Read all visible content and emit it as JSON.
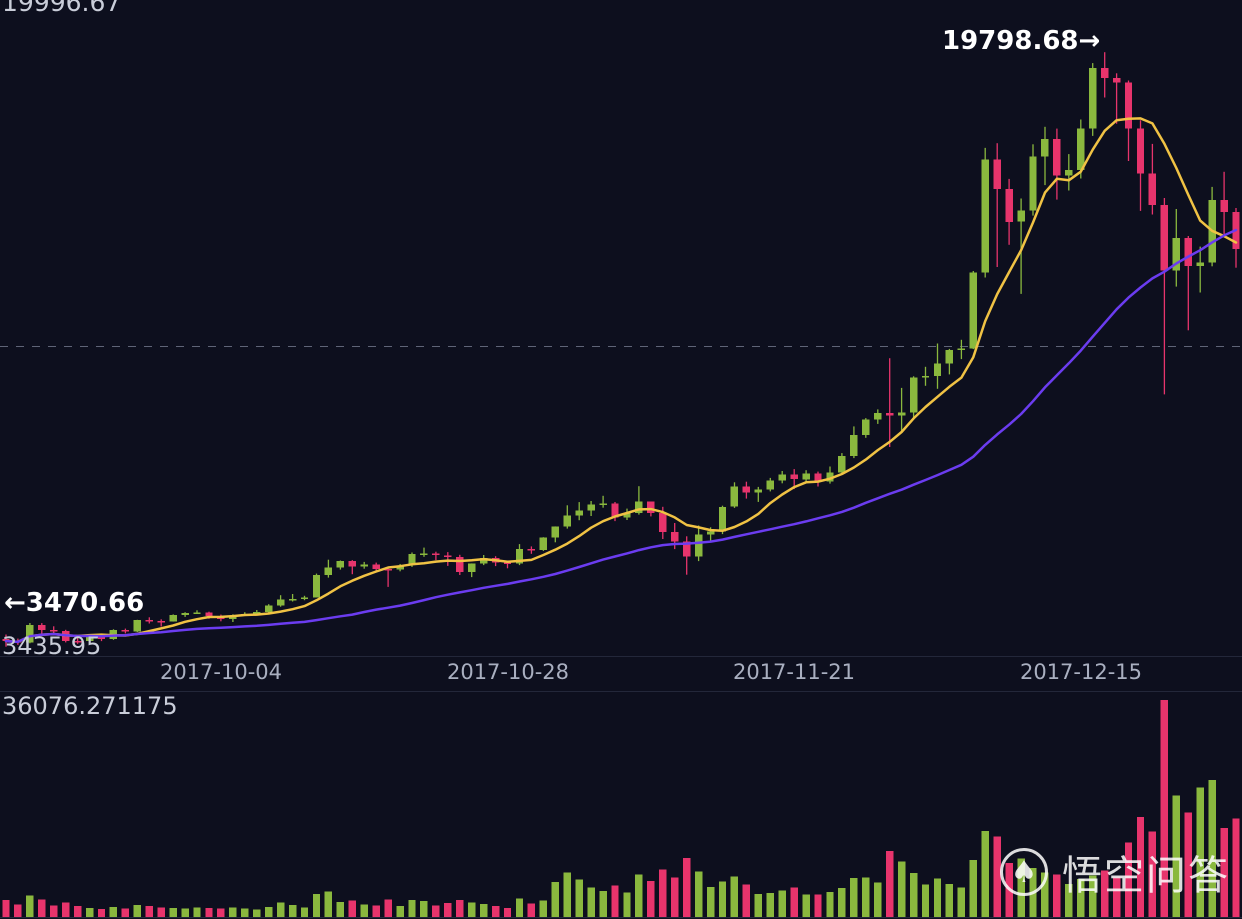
{
  "watermark": {
    "text": "悟空问答"
  },
  "annotations": {
    "axis_max": "19996.67",
    "axis_min": "3435.95",
    "volume_max_label": "36076.271175",
    "high_label": "19798.68",
    "high_arrow": "→",
    "low_arrow": "←",
    "low_label": "3470.66"
  },
  "colors": {
    "background": "#0d0f1e",
    "up": "#8ab83e",
    "down": "#e7346c",
    "ma_fast": "#f0c244",
    "ma_slow": "#6b3cf0",
    "grid_dash": "#5f6477",
    "separator": "#23273a",
    "axis_text": "#c9cdd9",
    "date_text": "#a9afc0",
    "annotation_text": "#ffffff"
  },
  "chart_data": {
    "type": "candlestick",
    "title": "",
    "xlabel": "",
    "ylabel": "",
    "grid": "single dashed horizontal midline",
    "legend_position": "none",
    "x_ticks": [
      "2017-10-04",
      "2017-10-28",
      "2017-11-21",
      "2017-12-15"
    ],
    "price_axis": {
      "min": 3435.95,
      "max": 19996.67
    },
    "volume_axis": {
      "min": 0,
      "max": 36076.271175
    },
    "marked_high": 19798.68,
    "marked_low": 3470.66,
    "overlays": [
      {
        "name": "MA7",
        "window": 7,
        "color": "#f0c244"
      },
      {
        "name": "MA30",
        "window": 30,
        "color": "#6b3cf0"
      }
    ],
    "candles_columns": [
      "date",
      "open",
      "high",
      "low",
      "close",
      "volume"
    ],
    "candles": [
      [
        "2017-09-16",
        3680,
        3808,
        3470.66,
        3625,
        2800
      ],
      [
        "2017-09-17",
        3625,
        3693,
        3520,
        3582,
        2100
      ],
      [
        "2017-09-18",
        3582,
        4123,
        3565,
        4065,
        3600
      ],
      [
        "2017-09-19",
        4065,
        4119,
        3820,
        3924,
        2900
      ],
      [
        "2017-09-20",
        3924,
        4031,
        3850,
        3905,
        1900
      ],
      [
        "2017-09-21",
        3905,
        3937,
        3590,
        3631,
        2400
      ],
      [
        "2017-09-22",
        3631,
        3755,
        3550,
        3630,
        1800
      ],
      [
        "2017-09-23",
        3630,
        3815,
        3594,
        3792,
        1500
      ],
      [
        "2017-09-24",
        3792,
        3795,
        3626,
        3682,
        1300
      ],
      [
        "2017-09-25",
        3682,
        3950,
        3661,
        3926,
        1700
      ],
      [
        "2017-09-26",
        3926,
        3970,
        3838,
        3892,
        1400
      ],
      [
        "2017-09-27",
        3892,
        4210,
        3874,
        4200,
        2000
      ],
      [
        "2017-09-28",
        4200,
        4279,
        4110,
        4174,
        1800
      ],
      [
        "2017-09-29",
        4174,
        4225,
        4026,
        4163,
        1600
      ],
      [
        "2017-09-30",
        4163,
        4360,
        4160,
        4338,
        1500
      ],
      [
        "2017-10-01",
        4338,
        4419,
        4290,
        4403,
        1400
      ],
      [
        "2017-10-02",
        4403,
        4470,
        4377,
        4409,
        1600
      ],
      [
        "2017-10-03",
        4409,
        4432,
        4239,
        4317,
        1500
      ],
      [
        "2017-10-04",
        4317,
        4352,
        4168,
        4229,
        1450
      ],
      [
        "2017-10-05",
        4229,
        4362,
        4151,
        4328,
        1550
      ],
      [
        "2017-10-06",
        4328,
        4418,
        4318,
        4370,
        1380
      ],
      [
        "2017-10-07",
        4370,
        4480,
        4340,
        4426,
        1250
      ],
      [
        "2017-10-08",
        4426,
        4640,
        4410,
        4610,
        1650
      ],
      [
        "2017-10-09",
        4610,
        4885,
        4570,
        4772,
        2400
      ],
      [
        "2017-10-10",
        4772,
        4920,
        4712,
        4781,
        2000
      ],
      [
        "2017-10-11",
        4781,
        4870,
        4750,
        4826,
        1550
      ],
      [
        "2017-10-12",
        4826,
        5480,
        4822,
        5446,
        3800
      ],
      [
        "2017-10-13",
        5446,
        5860,
        5370,
        5647,
        4200
      ],
      [
        "2017-10-14",
        5647,
        5838,
        5590,
        5831,
        2500
      ],
      [
        "2017-10-15",
        5831,
        5850,
        5463,
        5678,
        2750
      ],
      [
        "2017-10-16",
        5678,
        5800,
        5615,
        5725,
        2100
      ],
      [
        "2017-10-17",
        5725,
        5780,
        5510,
        5605,
        1900
      ],
      [
        "2017-10-18",
        5605,
        5623,
        5115,
        5590,
        2950
      ],
      [
        "2017-10-19",
        5590,
        5743,
        5543,
        5708,
        1850
      ],
      [
        "2017-10-20",
        5708,
        6060,
        5662,
        6011,
        2850
      ],
      [
        "2017-10-21",
        6011,
        6194,
        5940,
        6031,
        2650
      ],
      [
        "2017-10-22",
        6031,
        6080,
        5851,
        5983,
        1900
      ],
      [
        "2017-10-23",
        5983,
        6070,
        5690,
        5930,
        2300
      ],
      [
        "2017-10-24",
        5930,
        5995,
        5440,
        5526,
        2800
      ],
      [
        "2017-10-25",
        5526,
        5760,
        5382,
        5750,
        2400
      ],
      [
        "2017-10-26",
        5750,
        5990,
        5713,
        5904,
        2200
      ],
      [
        "2017-10-27",
        5904,
        5958,
        5686,
        5780,
        1800
      ],
      [
        "2017-10-28",
        5780,
        5830,
        5625,
        5755,
        1500
      ],
      [
        "2017-10-29",
        5755,
        6290,
        5712,
        6153,
        3100
      ],
      [
        "2017-10-30",
        6153,
        6225,
        6022,
        6130,
        2250
      ],
      [
        "2017-10-31",
        6130,
        6480,
        6103,
        6468,
        2750
      ],
      [
        "2017-11-01",
        6468,
        6775,
        6340,
        6767,
        5800
      ],
      [
        "2017-11-02",
        6767,
        7355,
        6715,
        7078,
        7400
      ],
      [
        "2017-11-03",
        7078,
        7444,
        6945,
        7207,
        6200
      ],
      [
        "2017-11-04",
        7207,
        7474,
        7060,
        7379,
        4900
      ],
      [
        "2017-11-05",
        7379,
        7617,
        7290,
        7407,
        4300
      ],
      [
        "2017-11-06",
        7407,
        7445,
        6920,
        7022,
        5200
      ],
      [
        "2017-11-07",
        7022,
        7265,
        6950,
        7144,
        4100
      ],
      [
        "2017-11-08",
        7144,
        7879,
        7100,
        7459,
        7100
      ],
      [
        "2017-11-09",
        7459,
        7460,
        7050,
        7143,
        6000
      ],
      [
        "2017-11-10",
        7143,
        7315,
        6430,
        6618,
        7900
      ],
      [
        "2017-11-11",
        6618,
        6870,
        6153,
        6357,
        6600
      ],
      [
        "2017-11-12",
        6357,
        6505,
        5450,
        5950,
        9800
      ],
      [
        "2017-11-13",
        5950,
        6800,
        5823,
        6559,
        7600
      ],
      [
        "2017-11-14",
        6559,
        6750,
        6333,
        6635,
        5000
      ],
      [
        "2017-11-15",
        6635,
        7345,
        6565,
        7315,
        5900
      ],
      [
        "2017-11-16",
        7315,
        7988,
        7285,
        7871,
        6700
      ],
      [
        "2017-11-17",
        7871,
        8004,
        7538,
        7708,
        5400
      ],
      [
        "2017-11-18",
        7708,
        7860,
        7448,
        7790,
        3800
      ],
      [
        "2017-11-19",
        7790,
        8107,
        7738,
        8036,
        4000
      ],
      [
        "2017-11-20",
        8036,
        8298,
        7960,
        8200,
        4400
      ],
      [
        "2017-11-21",
        8200,
        8348,
        7800,
        8071,
        4900
      ],
      [
        "2017-11-22",
        8071,
        8320,
        8010,
        8235,
        3700
      ],
      [
        "2017-11-23",
        8235,
        8280,
        7870,
        8010,
        3750
      ],
      [
        "2017-11-24",
        8010,
        8420,
        7950,
        8250,
        4150
      ],
      [
        "2017-11-25",
        8250,
        8790,
        8205,
        8707,
        4850
      ],
      [
        "2017-11-26",
        8707,
        9522,
        8650,
        9284,
        6500
      ],
      [
        "2017-11-27",
        9284,
        9750,
        9210,
        9718,
        6600
      ],
      [
        "2017-11-28",
        9718,
        9990,
        9590,
        9888,
        5750
      ],
      [
        "2017-11-29",
        9888,
        11395,
        8955,
        9824,
        11000
      ],
      [
        "2017-11-30",
        9824,
        10580,
        9380,
        9906,
        9200
      ],
      [
        "2017-12-01",
        9906,
        10898,
        9750,
        10859,
        7300
      ],
      [
        "2017-12-02",
        10859,
        11160,
        10638,
        10912,
        5400
      ],
      [
        "2017-12-03",
        10912,
        11800,
        10555,
        11246,
        6400
      ],
      [
        "2017-12-04",
        11246,
        11650,
        10950,
        11623,
        5500
      ],
      [
        "2017-12-05",
        11623,
        11900,
        11370,
        11667,
        4900
      ],
      [
        "2017-12-06",
        11667,
        13790,
        11645,
        13749,
        9500
      ],
      [
        "2017-12-07",
        13749,
        17170,
        13611,
        16850,
        14300
      ],
      [
        "2017-12-08",
        16850,
        17300,
        13900,
        16047,
        13400
      ],
      [
        "2017-12-09",
        16047,
        16320,
        14510,
        15142,
        9000
      ],
      [
        "2017-12-10",
        15142,
        15780,
        13160,
        15456,
        9750
      ],
      [
        "2017-12-11",
        15456,
        17270,
        15310,
        16936,
        8150
      ],
      [
        "2017-12-12",
        16936,
        17750,
        16150,
        17415,
        7400
      ],
      [
        "2017-12-13",
        17415,
        17700,
        15750,
        16408,
        7100
      ],
      [
        "2017-12-14",
        16408,
        17000,
        16000,
        16564,
        5500
      ],
      [
        "2017-12-15",
        16564,
        17950,
        16330,
        17706,
        6350
      ],
      [
        "2017-12-16",
        17706,
        19500,
        17500,
        19365,
        6900
      ],
      [
        "2017-12-17",
        19365,
        19798.68,
        18555,
        19086,
        7750
      ],
      [
        "2017-12-18",
        19086,
        19220,
        17835,
        18972,
        6600
      ],
      [
        "2017-12-19",
        18972,
        19022,
        16812,
        17700,
        12400
      ],
      [
        "2017-12-20",
        17700,
        17930,
        15440,
        16466,
        16600
      ],
      [
        "2017-12-21",
        16466,
        17281,
        15342,
        15600,
        14200
      ],
      [
        "2017-12-22",
        15600,
        15795,
        10400,
        13800,
        36076.271175
      ],
      [
        "2017-12-23",
        13800,
        15493,
        13361,
        14699,
        20200
      ],
      [
        "2017-12-24",
        14699,
        14750,
        12160,
        13925,
        17400
      ],
      [
        "2017-12-25",
        13925,
        14460,
        13200,
        14026,
        21500
      ],
      [
        "2017-12-26",
        14026,
        16100,
        13920,
        15745,
        22800
      ],
      [
        "2017-12-27",
        15745,
        16514,
        14800,
        15416,
        14800
      ],
      [
        "2017-12-28",
        15416,
        15520,
        13880,
        14398,
        16400
      ]
    ]
  }
}
